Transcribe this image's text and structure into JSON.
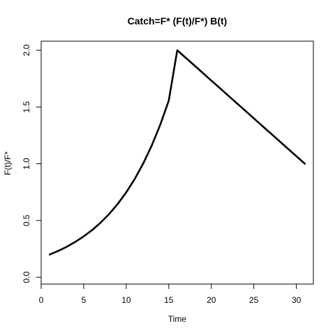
{
  "chart_data": {
    "type": "line",
    "title": "Catch=F* (F(t)/F*) B(t)",
    "xlabel": "Time",
    "ylabel": "F(t)/F*",
    "xlim": [
      0,
      32
    ],
    "ylim": [
      -0.06,
      2.08
    ],
    "xticks": [
      0,
      5,
      10,
      15,
      20,
      25,
      30
    ],
    "yticks": [
      0.0,
      0.5,
      1.0,
      1.5,
      2.0
    ],
    "ytick_labels": [
      "0.0",
      "0.5",
      "1.0",
      "1.5",
      "2.0"
    ],
    "grid": false,
    "color": "#000000",
    "x": [
      1,
      2,
      3,
      4,
      5,
      6,
      7,
      8,
      9,
      10,
      11,
      12,
      13,
      14,
      15,
      16,
      17,
      18,
      19,
      20,
      21,
      22,
      23,
      24,
      25,
      26,
      27,
      28,
      29,
      30,
      31
    ],
    "y": [
      0.2,
      0.232,
      0.268,
      0.311,
      0.36,
      0.416,
      0.482,
      0.558,
      0.646,
      0.748,
      0.866,
      1.003,
      1.161,
      1.344,
      1.556,
      2.0,
      1.933,
      1.867,
      1.8,
      1.733,
      1.667,
      1.6,
      1.533,
      1.467,
      1.4,
      1.333,
      1.267,
      1.2,
      1.133,
      1.067,
      1.0
    ]
  }
}
